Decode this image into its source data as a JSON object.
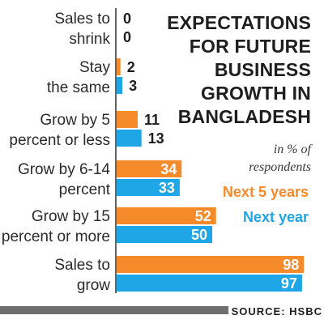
{
  "chart_data": {
    "type": "bar",
    "orientation": "horizontal",
    "title": "EXPECTATIONS FOR FUTURE BUSINESS GROWTH IN BANGLADESH",
    "title_lines": [
      "EXPECTATIONS",
      "FOR FUTURE",
      "BUSINESS",
      "GROWTH IN",
      "BANGLADESH"
    ],
    "subtitle": "in % of respondents",
    "subtitle_lines": [
      "in % of",
      "respondents"
    ],
    "categories": [
      "Sales to shrink",
      "Stay the same",
      "Grow by 5 percent or less",
      "Grow by 6-14 percent",
      "Grow by 15 percent or more",
      "Sales to grow"
    ],
    "category_lines": [
      [
        "Sales to",
        "shrink"
      ],
      [
        "Stay",
        "the same"
      ],
      [
        "Grow by 5",
        "percent or less"
      ],
      [
        "Grow by 6-14",
        "percent"
      ],
      [
        "Grow by 15",
        "percent or more"
      ],
      [
        "Sales to",
        "grow"
      ]
    ],
    "series": [
      {
        "name": "Next 5 years",
        "color": "#f58a2a",
        "values": [
          0,
          2,
          11,
          34,
          52,
          98
        ]
      },
      {
        "name": "Next year",
        "color": "#1ea6e6",
        "values": [
          0,
          3,
          13,
          33,
          50,
          97
        ]
      }
    ],
    "xlim": [
      0,
      100
    ],
    "grid": false,
    "legend_position": "right"
  },
  "source": "SOURCE: HSBC",
  "colors": {
    "text": "#1e1e1e",
    "axis": "#333333",
    "footer_bar": "#6f6f6f"
  }
}
